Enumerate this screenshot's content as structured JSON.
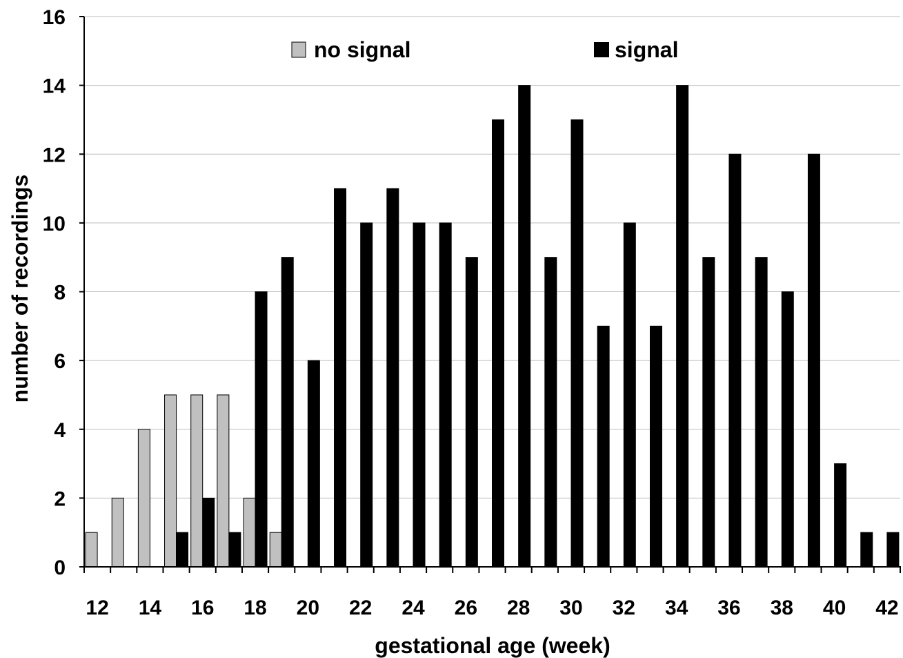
{
  "chart_data": {
    "type": "bar",
    "xlabel": "gestational age (week)",
    "ylabel": "number of recordings",
    "ylim": [
      0,
      16
    ],
    "yticks": [
      0,
      2,
      4,
      6,
      8,
      10,
      12,
      14,
      16
    ],
    "xlim": [
      11.5,
      42.5
    ],
    "xticks": [
      12,
      14,
      16,
      18,
      20,
      22,
      24,
      26,
      28,
      30,
      32,
      34,
      36,
      38,
      40,
      42
    ],
    "grid": true,
    "legend_position": "top",
    "categories": [
      12,
      13,
      14,
      15,
      16,
      17,
      18,
      19,
      20,
      21,
      22,
      23,
      24,
      25,
      26,
      27,
      28,
      29,
      30,
      31,
      32,
      33,
      34,
      35,
      36,
      37,
      38,
      39,
      40,
      41,
      42
    ],
    "series": [
      {
        "name": "no signal",
        "color": "#c0c0c0",
        "values": [
          1,
          2,
          4,
          5,
          5,
          5,
          2,
          1,
          0,
          0,
          0,
          0,
          0,
          0,
          0,
          0,
          0,
          0,
          0,
          0,
          0,
          0,
          0,
          0,
          0,
          0,
          0,
          0,
          0,
          0,
          0
        ]
      },
      {
        "name": "signal",
        "color": "#000000",
        "values": [
          0,
          0,
          0,
          1,
          2,
          1,
          8,
          9,
          6,
          11,
          10,
          11,
          10,
          10,
          9,
          13,
          14,
          9,
          13,
          7,
          10,
          7,
          14,
          9,
          12,
          9,
          8,
          12,
          3,
          1,
          1
        ]
      }
    ]
  }
}
